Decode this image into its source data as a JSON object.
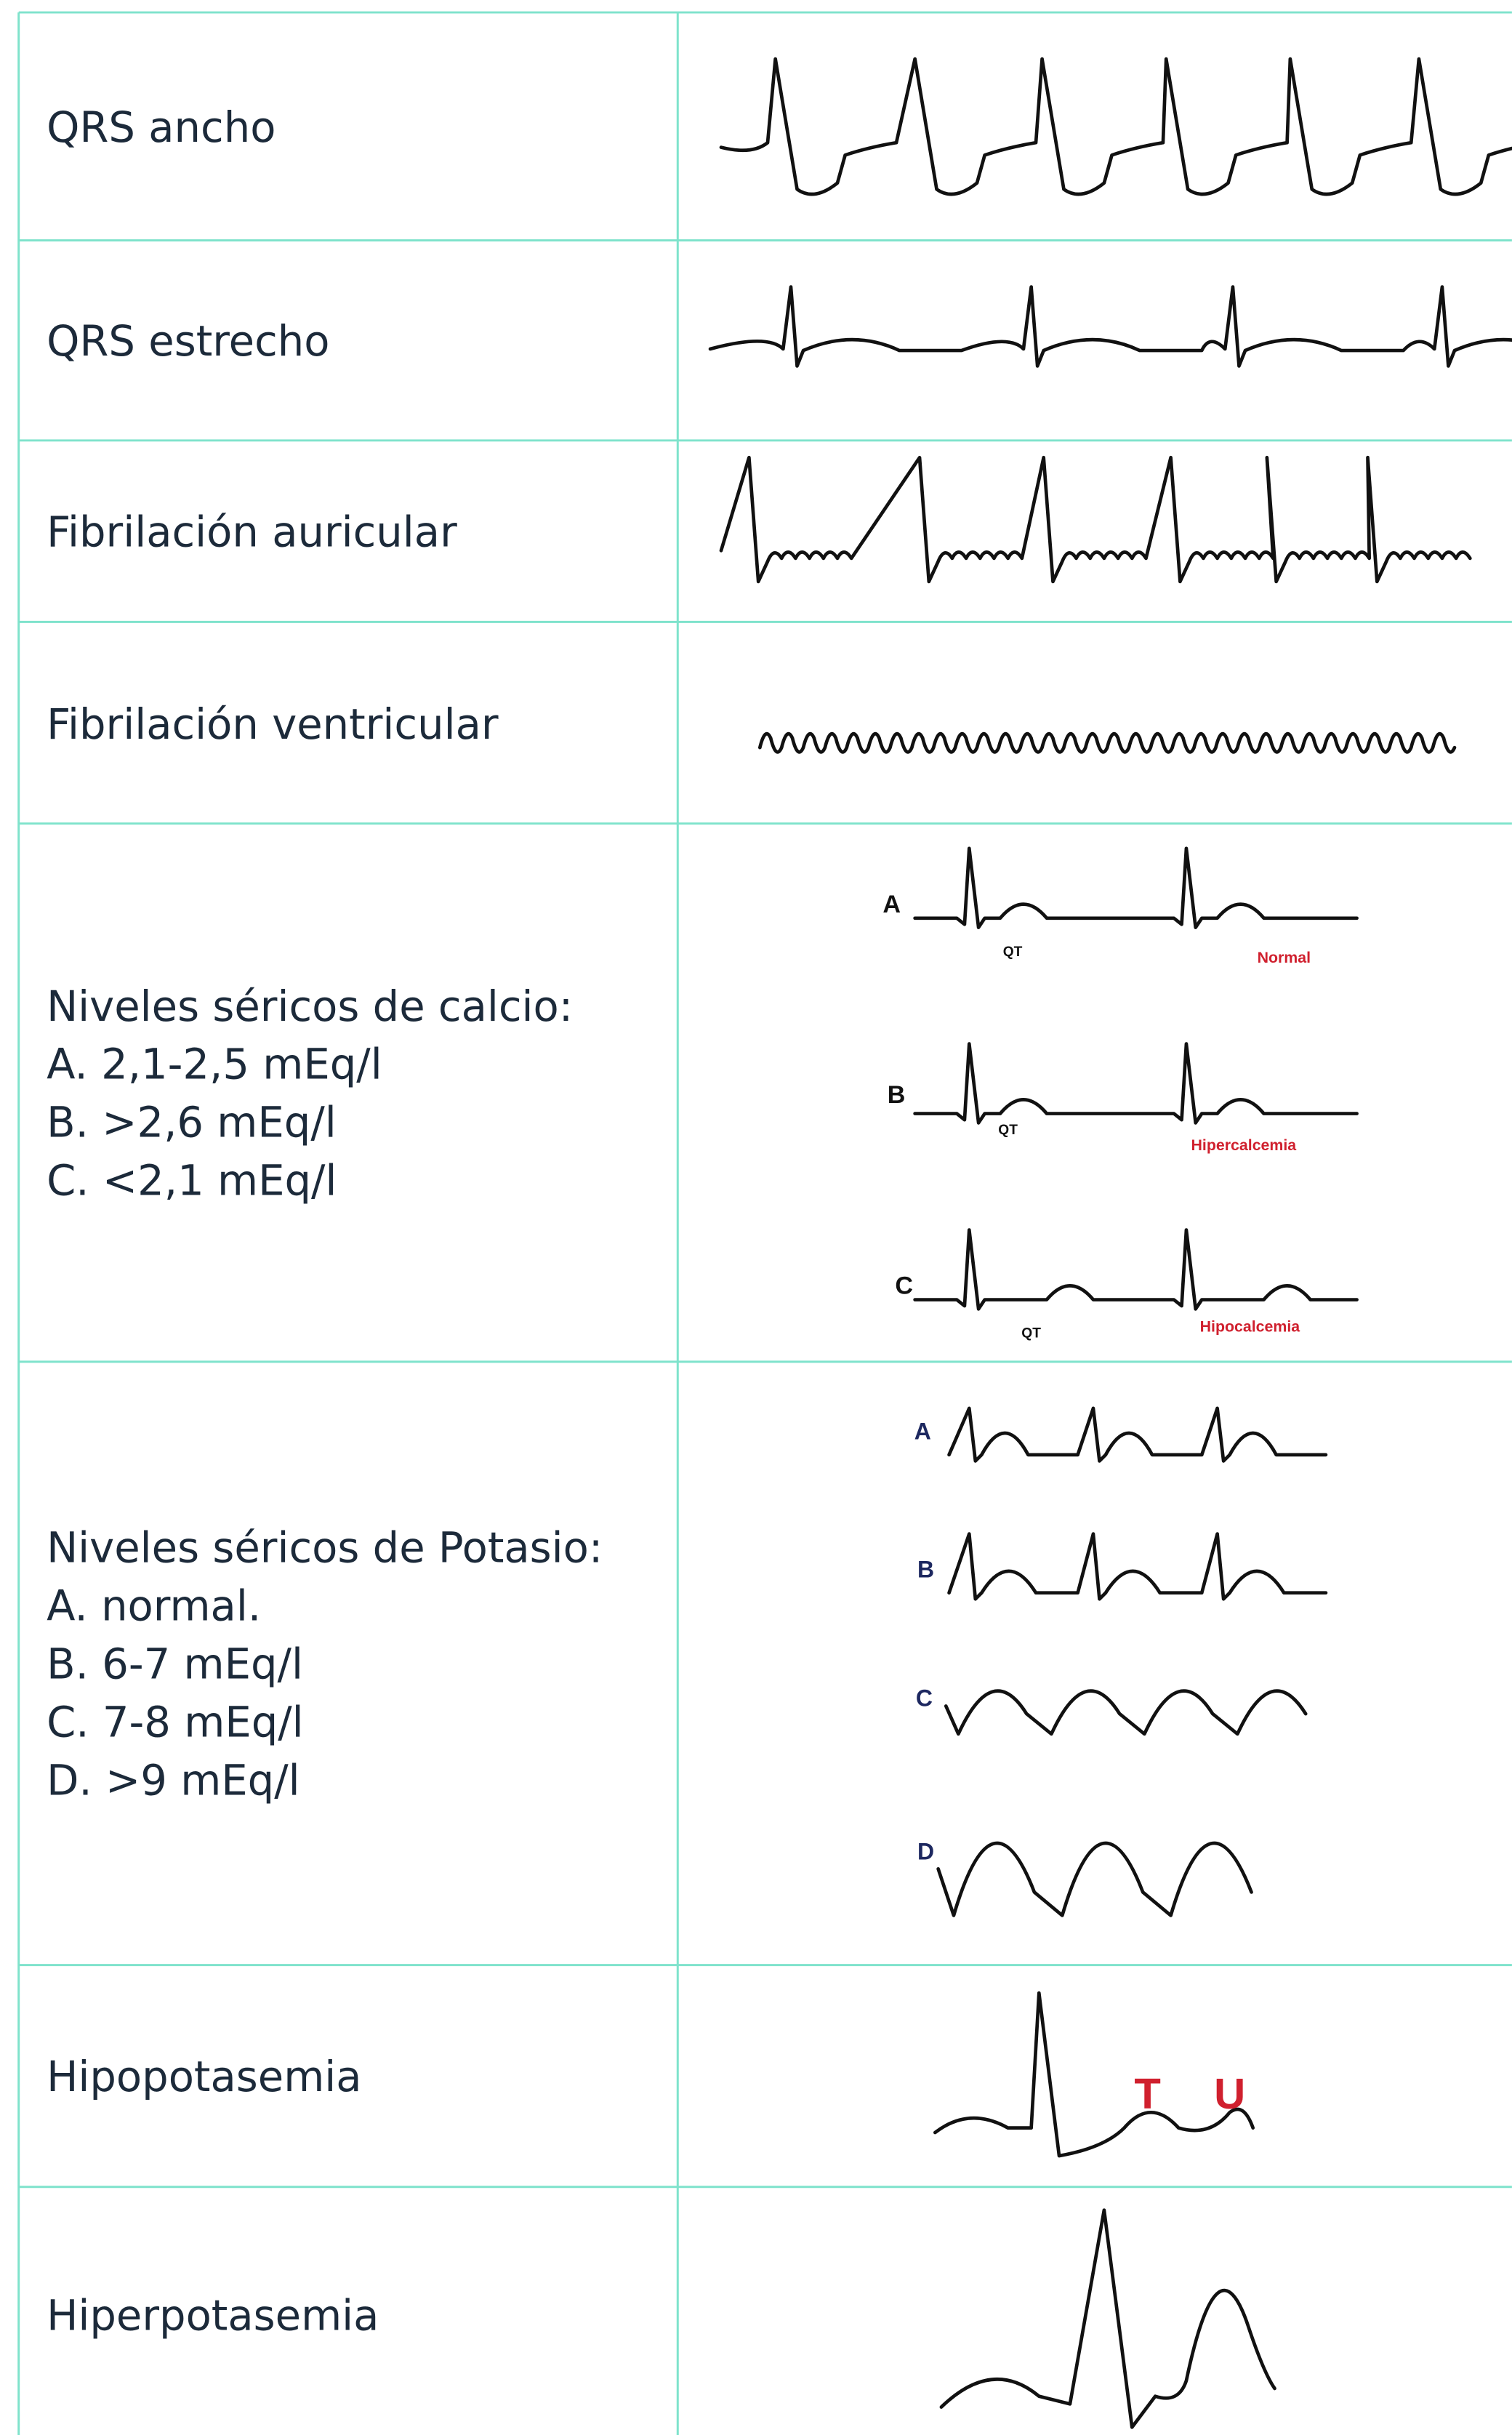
{
  "rows": [
    {
      "label": [
        "QRS ancho"
      ]
    },
    {
      "label": [
        "QRS estrecho"
      ]
    },
    {
      "label": [
        "Fibrilación auricular"
      ]
    },
    {
      "label": [
        "Fibrilación ventricular"
      ]
    },
    {
      "label": [
        "Niveles séricos de calcio:",
        "A. 2,1-2,5 mEq/l",
        "B. >2,6 mEq/l",
        "C. <2,1 mEq/l"
      ],
      "annotations": [
        "A",
        "QT",
        "Normal",
        "B",
        "QT",
        "Hipercalcemia",
        "C",
        "QT",
        "Hipocalcemia"
      ]
    },
    {
      "label": [
        "Niveles séricos de Potasio:",
        "A. normal.",
        "B. 6-7 mEq/l",
        "C. 7-8 mEq/l",
        "D. >9 mEq/l"
      ],
      "annotations": [
        "A",
        "B",
        "C",
        "D"
      ]
    },
    {
      "label": [
        "Hipopotasemia"
      ],
      "annotations": [
        "T",
        "U"
      ]
    },
    {
      "label": [
        "Hiperpotasemia"
      ]
    }
  ]
}
